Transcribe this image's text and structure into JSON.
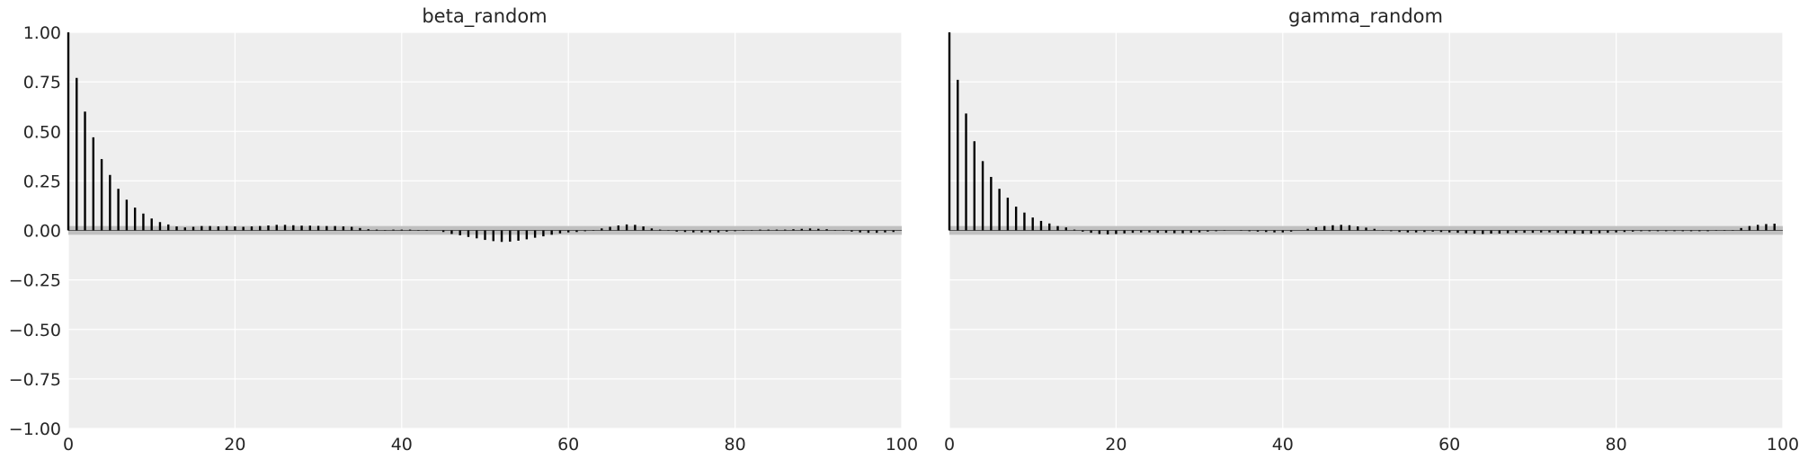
{
  "chart_data": [
    {
      "type": "bar",
      "title": "beta_random",
      "xlabel": "",
      "ylabel": "",
      "xlim": [
        0,
        100
      ],
      "ylim": [
        -1.0,
        1.0
      ],
      "xticks": [
        0,
        20,
        40,
        60,
        80,
        100
      ],
      "xtick_labels": [
        "0",
        "20",
        "40",
        "60",
        "80",
        "100"
      ],
      "yticks": [
        1.0,
        0.75,
        0.5,
        0.25,
        0.0,
        -0.25,
        -0.5,
        -0.75,
        -1.0
      ],
      "ytick_labels": [
        "1.00",
        "0.75",
        "0.50",
        "0.25",
        "0.00",
        "−0.25",
        "−0.50",
        "−0.75",
        "−1.00"
      ],
      "grid": true,
      "confidence_band": [
        -0.022,
        0.022
      ],
      "x": [
        0,
        1,
        2,
        3,
        4,
        5,
        6,
        7,
        8,
        9,
        10,
        11,
        12,
        13,
        14,
        15,
        16,
        17,
        18,
        19,
        20,
        21,
        22,
        23,
        24,
        25,
        26,
        27,
        28,
        29,
        30,
        31,
        32,
        33,
        34,
        35,
        36,
        37,
        38,
        39,
        40,
        41,
        42,
        43,
        44,
        45,
        46,
        47,
        48,
        49,
        50,
        51,
        52,
        53,
        54,
        55,
        56,
        57,
        58,
        59,
        60,
        61,
        62,
        63,
        64,
        65,
        66,
        67,
        68,
        69,
        70,
        71,
        72,
        73,
        74,
        75,
        76,
        77,
        78,
        79,
        80,
        81,
        82,
        83,
        84,
        85,
        86,
        87,
        88,
        89,
        90,
        91,
        92,
        93,
        94,
        95,
        96,
        97,
        98,
        99
      ],
      "values": [
        1.0,
        0.77,
        0.6,
        0.47,
        0.36,
        0.28,
        0.21,
        0.155,
        0.115,
        0.085,
        0.06,
        0.042,
        0.03,
        0.02,
        0.015,
        0.018,
        0.022,
        0.022,
        0.02,
        0.022,
        0.02,
        0.018,
        0.02,
        0.022,
        0.025,
        0.028,
        0.028,
        0.026,
        0.024,
        0.024,
        0.023,
        0.022,
        0.022,
        0.02,
        0.018,
        0.012,
        0.006,
        0.004,
        0.002,
        0.004,
        0.004,
        0.004,
        0.002,
        0.002,
        0.0,
        -0.008,
        -0.018,
        -0.025,
        -0.033,
        -0.04,
        -0.048,
        -0.054,
        -0.058,
        -0.057,
        -0.052,
        -0.045,
        -0.037,
        -0.03,
        -0.022,
        -0.015,
        -0.01,
        -0.008,
        -0.004,
        0.002,
        0.01,
        0.018,
        0.025,
        0.03,
        0.028,
        0.02,
        0.01,
        0.004,
        -0.002,
        -0.006,
        -0.008,
        -0.01,
        -0.01,
        -0.01,
        -0.01,
        -0.006,
        -0.004,
        -0.002,
        0.002,
        0.004,
        0.004,
        0.004,
        0.004,
        0.006,
        0.008,
        0.01,
        0.008,
        0.006,
        0.002,
        -0.002,
        -0.006,
        -0.01,
        -0.012,
        -0.012,
        -0.01,
        -0.008
      ]
    },
    {
      "type": "bar",
      "title": "gamma_random",
      "xlabel": "",
      "ylabel": "",
      "xlim": [
        0,
        100
      ],
      "ylim": [
        -1.0,
        1.0
      ],
      "xticks": [
        0,
        20,
        40,
        60,
        80,
        100
      ],
      "xtick_labels": [
        "0",
        "20",
        "40",
        "60",
        "80",
        "100"
      ],
      "grid": true,
      "confidence_band": [
        -0.022,
        0.022
      ],
      "x": [
        0,
        1,
        2,
        3,
        4,
        5,
        6,
        7,
        8,
        9,
        10,
        11,
        12,
        13,
        14,
        15,
        16,
        17,
        18,
        19,
        20,
        21,
        22,
        23,
        24,
        25,
        26,
        27,
        28,
        29,
        30,
        31,
        32,
        33,
        34,
        35,
        36,
        37,
        38,
        39,
        40,
        41,
        42,
        43,
        44,
        45,
        46,
        47,
        48,
        49,
        50,
        51,
        52,
        53,
        54,
        55,
        56,
        57,
        58,
        59,
        60,
        61,
        62,
        63,
        64,
        65,
        66,
        67,
        68,
        69,
        70,
        71,
        72,
        73,
        74,
        75,
        76,
        77,
        78,
        79,
        80,
        81,
        82,
        83,
        84,
        85,
        86,
        87,
        88,
        89,
        90,
        91,
        92,
        93,
        94,
        95,
        96,
        97,
        98,
        99
      ],
      "values": [
        1.0,
        0.76,
        0.59,
        0.45,
        0.35,
        0.27,
        0.21,
        0.165,
        0.12,
        0.09,
        0.065,
        0.048,
        0.035,
        0.022,
        0.015,
        0.004,
        -0.006,
        -0.012,
        -0.018,
        -0.02,
        -0.018,
        -0.015,
        -0.012,
        -0.01,
        -0.01,
        -0.012,
        -0.012,
        -0.014,
        -0.014,
        -0.012,
        -0.01,
        -0.006,
        -0.004,
        -0.002,
        0.0,
        -0.002,
        -0.004,
        -0.006,
        -0.008,
        -0.01,
        -0.01,
        -0.006,
        0.0,
        0.008,
        0.016,
        0.022,
        0.026,
        0.028,
        0.026,
        0.02,
        0.014,
        0.008,
        0.002,
        -0.004,
        -0.008,
        -0.01,
        -0.01,
        -0.008,
        -0.006,
        -0.008,
        -0.01,
        -0.012,
        -0.014,
        -0.016,
        -0.018,
        -0.016,
        -0.016,
        -0.014,
        -0.012,
        -0.012,
        -0.012,
        -0.01,
        -0.01,
        -0.012,
        -0.014,
        -0.016,
        -0.016,
        -0.016,
        -0.014,
        -0.012,
        -0.01,
        -0.008,
        -0.006,
        -0.004,
        -0.004,
        -0.004,
        -0.004,
        -0.004,
        -0.004,
        -0.004,
        -0.004,
        -0.004,
        -0.002,
        -0.002,
        -0.002,
        0.012,
        0.022,
        0.028,
        0.032,
        0.034
      ]
    }
  ]
}
